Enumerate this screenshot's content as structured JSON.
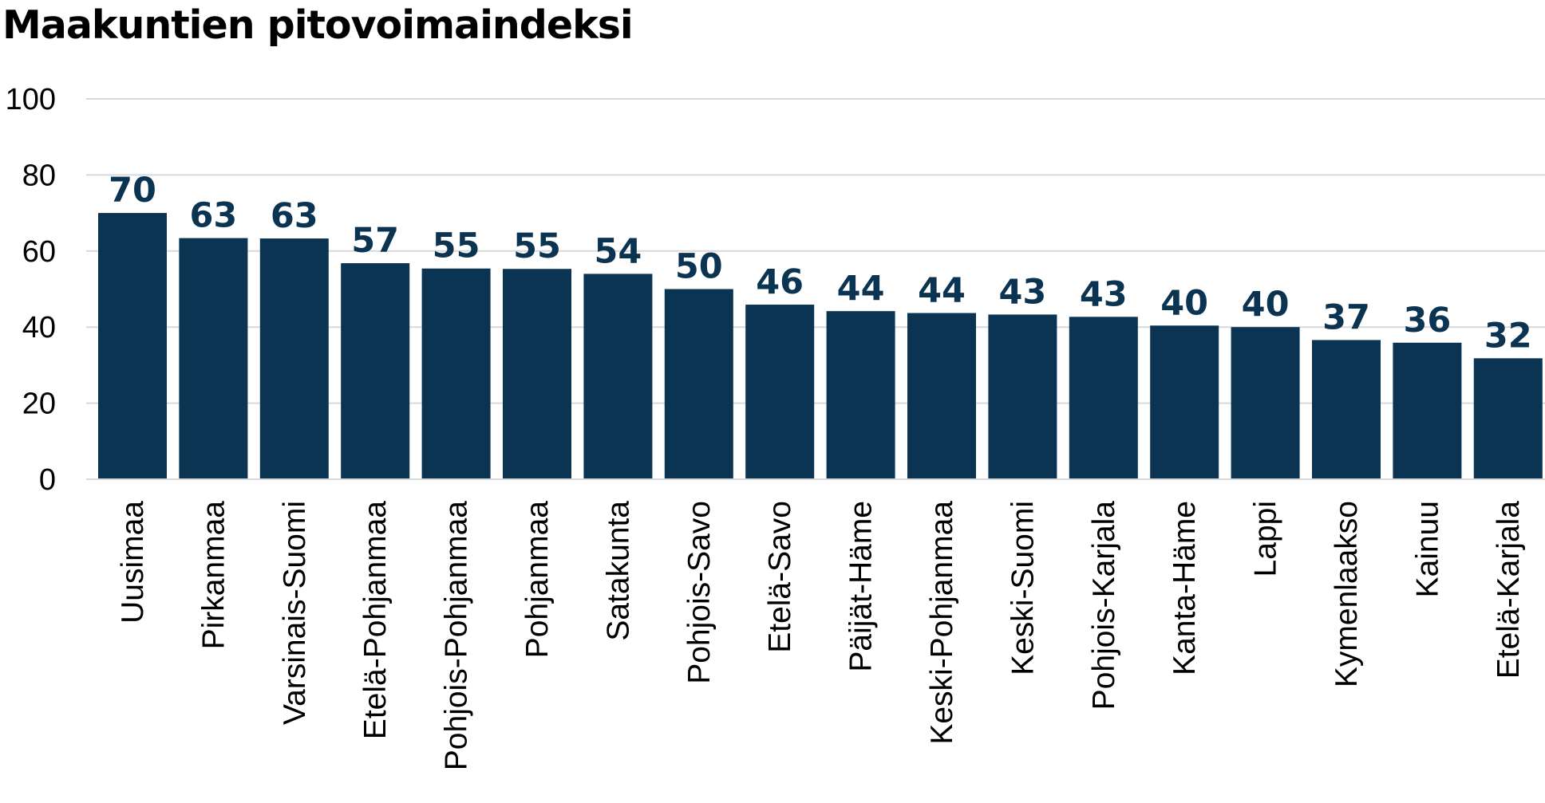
{
  "chart_data": {
    "type": "bar",
    "title": "Maakuntien pitovoimaindeksi",
    "xlabel": "",
    "ylabel": "",
    "ylim": [
      0,
      100
    ],
    "yticks": [
      "0",
      "20",
      "40",
      "60",
      "80",
      "100"
    ],
    "grid": true,
    "legend": "none",
    "bar_color": "#0b3352",
    "label_color": "#0b3352",
    "grid_color": "#d9d9d9",
    "categories": [
      "Uusimaa",
      "Pirkanmaa",
      "Varsinais-Suomi",
      "Etelä-Pohjanmaa",
      "Pohjois-Pohjanmaa",
      "Pohjanmaa",
      "Satakunta",
      "Pohjois-Savo",
      "Etelä-Savo",
      "Päijät-Häme",
      "Keski-Pohjanmaa",
      "Keski-Suomi",
      "Pohjois-Karjala",
      "Kanta-Häme",
      "Lappi",
      "Kymenlaakso",
      "Kainuu",
      "Etelä-Karjala"
    ],
    "values": [
      70,
      63.4,
      63.3,
      56.8,
      55.4,
      55.3,
      54,
      50,
      45.9,
      44.2,
      43.7,
      43.3,
      42.7,
      40.4,
      40,
      36.6,
      35.9,
      31.8
    ],
    "data_labels": [
      "70",
      "63",
      "63",
      "57",
      "55",
      "55",
      "54",
      "50",
      "46",
      "44",
      "44",
      "43",
      "43",
      "40",
      "40",
      "37",
      "36",
      "32"
    ]
  }
}
